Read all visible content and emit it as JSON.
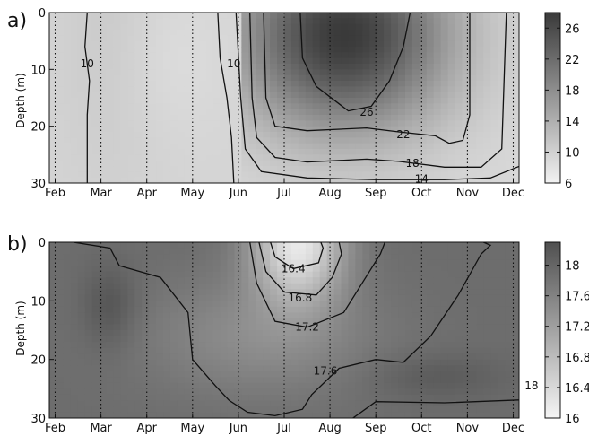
{
  "chart_data": [
    {
      "type": "heatmap",
      "panel_label": "a)",
      "ylabel": "Depth (m)",
      "ylim": [
        30,
        0
      ],
      "yticks": [
        0,
        10,
        20,
        30
      ],
      "xticks": [
        "Feb",
        "Mar",
        "Apr",
        "May",
        "Jun",
        "Jul",
        "Aug",
        "Sep",
        "Oct",
        "Nov",
        "Dec"
      ],
      "monthly_lines": true,
      "colorbar": {
        "range": [
          6,
          28
        ],
        "ticks": [
          6,
          10,
          14,
          18,
          22,
          26
        ],
        "colors": [
          "#f2f2f2",
          "#3a3a3a"
        ]
      },
      "contour_levels": [
        10,
        14,
        18,
        22,
        26
      ],
      "contour_labels": [
        {
          "text": "10",
          "month": 0.7,
          "depth": 9
        },
        {
          "text": "10",
          "month": 3.9,
          "depth": 9
        },
        {
          "text": "26",
          "month": 6.8,
          "depth": 17.5
        },
        {
          "text": "22",
          "month": 7.6,
          "depth": 21.5
        },
        {
          "text": "18",
          "month": 7.8,
          "depth": 26.5
        },
        {
          "text": "14",
          "month": 8.0,
          "depth": 29.3
        }
      ],
      "contours": [
        {
          "level": 10,
          "points": [
            [
              0.7,
              0
            ],
            [
              0.65,
              6
            ],
            [
              0.75,
              12
            ],
            [
              0.7,
              18
            ],
            [
              0.7,
              30
            ]
          ]
        },
        {
          "level": 10,
          "points": [
            [
              3.55,
              0
            ],
            [
              3.6,
              8
            ],
            [
              3.75,
              15
            ],
            [
              3.85,
              22
            ],
            [
              3.9,
              30
            ]
          ]
        },
        {
          "level": 14,
          "points": [
            [
              3.95,
              0
            ],
            [
              4.05,
              15
            ],
            [
              4.15,
              24
            ],
            [
              4.5,
              28
            ],
            [
              5.5,
              29.1
            ],
            [
              7,
              29.4
            ],
            [
              8.5,
              29.4
            ],
            [
              9.5,
              29.1
            ],
            [
              10.15,
              27
            ],
            [
              10.15,
              0
            ]
          ]
        },
        {
          "level": 18,
          "points": [
            [
              4.25,
              0
            ],
            [
              4.3,
              15
            ],
            [
              4.4,
              22
            ],
            [
              4.8,
              25.5
            ],
            [
              5.5,
              26.3
            ],
            [
              6.8,
              25.8
            ],
            [
              7.5,
              26.2
            ],
            [
              8.5,
              27.2
            ],
            [
              9.3,
              27.2
            ],
            [
              9.75,
              24
            ],
            [
              9.85,
              0
            ]
          ]
        },
        {
          "level": 22,
          "points": [
            [
              4.55,
              0
            ],
            [
              4.6,
              15
            ],
            [
              4.8,
              20
            ],
            [
              5.5,
              20.8
            ],
            [
              6.8,
              20.3
            ],
            [
              7.5,
              21
            ],
            [
              8.3,
              21.7
            ],
            [
              8.6,
              23
            ],
            [
              8.9,
              22.5
            ],
            [
              9.05,
              18
            ],
            [
              9.05,
              0
            ]
          ]
        },
        {
          "level": 26,
          "points": [
            [
              5.35,
              0
            ],
            [
              5.4,
              8
            ],
            [
              5.7,
              13
            ],
            [
              6.4,
              17.3
            ],
            [
              6.9,
              16.5
            ],
            [
              7.3,
              12
            ],
            [
              7.6,
              6
            ],
            [
              7.75,
              0
            ]
          ]
        }
      ]
    },
    {
      "type": "heatmap",
      "panel_label": "b)",
      "ylabel": "Depth (m)",
      "ylim": [
        30,
        0
      ],
      "yticks": [
        0,
        10,
        20,
        30
      ],
      "xticks": [
        "Feb",
        "Mar",
        "Apr",
        "May",
        "Jun",
        "Jul",
        "Aug",
        "Sep",
        "Oct",
        "Nov",
        "Dec"
      ],
      "monthly_lines": true,
      "colorbar": {
        "range": [
          16,
          18.3
        ],
        "ticks": [
          "16",
          "16.4",
          "16.8",
          "17.2",
          "17.6",
          "18"
        ],
        "colors": [
          "#f5f5f5",
          "#505050"
        ]
      },
      "contour_levels": [
        16.4,
        16.8,
        17.2,
        17.6,
        18
      ],
      "contour_labels": [
        {
          "text": "16.4",
          "month": 5.2,
          "depth": 4.5
        },
        {
          "text": "16.8",
          "month": 5.35,
          "depth": 9.5
        },
        {
          "text": "17.2",
          "month": 5.5,
          "depth": 14.5
        },
        {
          "text": "17.6",
          "month": 5.9,
          "depth": 22
        },
        {
          "text": "18",
          "month": 10.4,
          "depth": 24.5
        }
      ],
      "contours": [
        {
          "level": 16.4,
          "points": [
            [
              4.7,
              0
            ],
            [
              4.8,
              2.5
            ],
            [
              5.2,
              4.5
            ],
            [
              5.75,
              3.5
            ],
            [
              5.85,
              1
            ],
            [
              5.8,
              0
            ]
          ]
        },
        {
          "level": 16.8,
          "points": [
            [
              4.45,
              0
            ],
            [
              4.6,
              5
            ],
            [
              5.0,
              8.5
            ],
            [
              5.7,
              9
            ],
            [
              6.05,
              6
            ],
            [
              6.25,
              2
            ],
            [
              6.2,
              0
            ]
          ]
        },
        {
          "level": 17.2,
          "points": [
            [
              4.25,
              0
            ],
            [
              4.4,
              7
            ],
            [
              4.8,
              13.5
            ],
            [
              5.5,
              14.5
            ],
            [
              6.3,
              12
            ],
            [
              6.7,
              7
            ],
            [
              7.1,
              2
            ],
            [
              7.2,
              0
            ]
          ]
        },
        {
          "level": 17.6,
          "points": [
            [
              0.4,
              0
            ],
            [
              1.2,
              1
            ],
            [
              1.4,
              4
            ],
            [
              2.3,
              6
            ],
            [
              2.9,
              12
            ],
            [
              3.0,
              20
            ],
            [
              3.5,
              24.5
            ],
            [
              3.8,
              27
            ],
            [
              4.2,
              29
            ],
            [
              4.8,
              29.6
            ],
            [
              5.4,
              28.5
            ],
            [
              5.6,
              26
            ],
            [
              6.2,
              21.5
            ],
            [
              7.0,
              20
            ],
            [
              7.6,
              20.5
            ],
            [
              8.2,
              16
            ],
            [
              8.8,
              9
            ],
            [
              9.3,
              2
            ],
            [
              9.5,
              0.5
            ],
            [
              9.35,
              0
            ]
          ]
        },
        {
          "level": 18,
          "points": [
            [
              6.5,
              30
            ],
            [
              7.0,
              27.2
            ],
            [
              8.5,
              27.4
            ],
            [
              10.5,
              26.8
            ],
            [
              10.95,
              22
            ]
          ]
        }
      ]
    }
  ]
}
